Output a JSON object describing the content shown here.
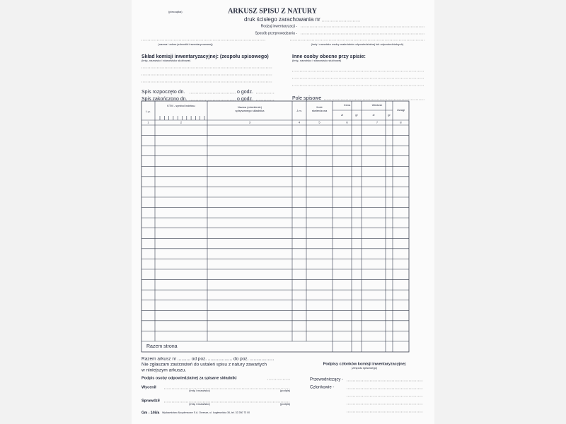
{
  "header": {
    "stamp": "(pieczątka)",
    "title": "ARKUSZ SPISU Z NATURY",
    "subtitle": "druk ścisłego zarachowania nr",
    "inventory_type": "Rodzaj inwentaryzacji -",
    "method": "Sposób przeprowadzania -",
    "unit_caption": "(nazwa i adres jednostki inwentaryzowanej)",
    "responsible_caption": "(imię i nazwisko osoby materialnie odpowiedzialnej lub odpowiedzialnych)"
  },
  "commission": {
    "title": "Skład komisji inwentaryzacyjnej: (zespołu spisowego)",
    "caption": "(imię, nazwisko i stanowisko służbowe)"
  },
  "others": {
    "title": "Inne osoby obecne przy spisie:",
    "caption": "(imię, nazwisko i stanowisko służbowe)"
  },
  "timing": {
    "start": "Spis rozpoczęto dn.",
    "end": "Spis zakończono dn.",
    "hour": "o godz.",
    "field": "Pole spisowe"
  },
  "table": {
    "lp": "L.p.",
    "ktm": "KTM - symbol indeksu",
    "name": [
      "Nazwa (określenie)",
      "spisywanego składnika"
    ],
    "unit": "J.m.",
    "quantity": [
      "Ilość",
      "stwierdzona"
    ],
    "price": "Cena",
    "value": "Wartość",
    "zl": "zł",
    "gr": "gr",
    "notes": "Uwagi",
    "numbers": [
      "1",
      "2",
      "3",
      "4",
      "5",
      "6",
      "7",
      "8"
    ],
    "total": "Razem strona"
  },
  "footer": {
    "sheet_total": "Razem arkusz nr .......... od poz. ................... do poz. ...................",
    "no_objections": [
      "Nie zgłaszam zastrzeżeń do ustaleń spisu z natury zawartych",
      "w niniejszym arkuszu."
    ],
    "responsible_signature": "Podpis osoby odpowiedzialnej za spisane składniki",
    "priced": "Wycenił",
    "checked": "Sprawdził",
    "name_caption": "(imię i nazwisko)",
    "signature_caption": "(podpis)",
    "form_code": "Gm - 146/a",
    "publisher": "Wydawnictwo Akcydensowe S.A. Orzesze, ul. Łagiewnicka 36, tel. 32 280 73 00",
    "commission_signatures": "Podpisy członków komisji inwentaryzacyjnej",
    "team_caption": "(zespołu spisowego)",
    "chairman": "Przewodniczący -",
    "members": "Członkowie -"
  }
}
